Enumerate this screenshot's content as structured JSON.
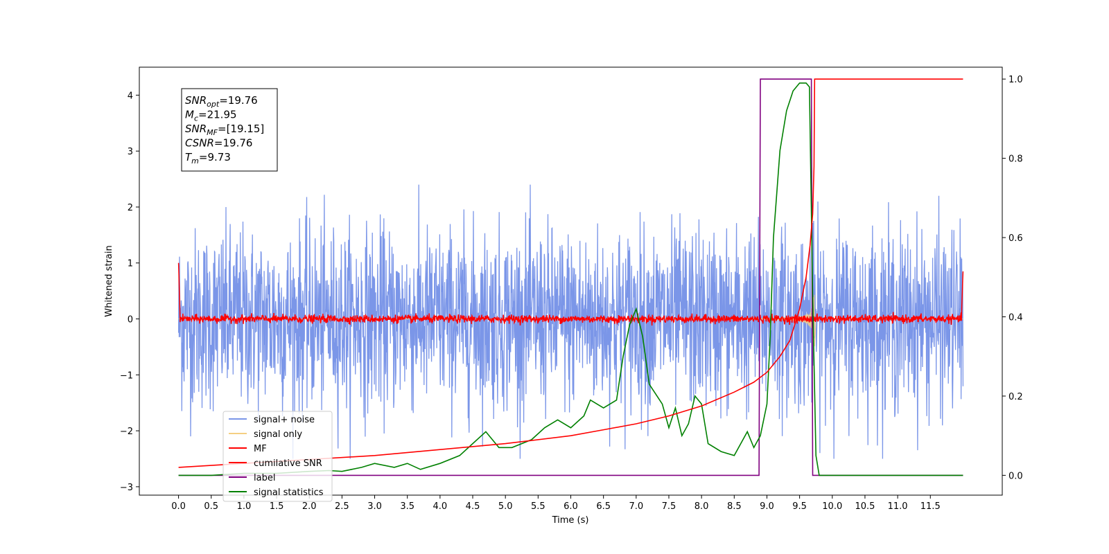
{
  "chart_data": {
    "type": "line",
    "xlabel": "Time (s)",
    "ylabel": "Whitened strain",
    "xlim": [
      -0.6,
      12.6
    ],
    "ylim_left": [
      -3.15,
      4.5
    ],
    "ylim_right": [
      -0.05,
      1.03
    ],
    "xticks": [
      "0.0",
      "0.5",
      "1.0",
      "1.5",
      "2.0",
      "2.5",
      "3.0",
      "3.5",
      "4.0",
      "4.5",
      "5.0",
      "5.5",
      "6.0",
      "6.5",
      "7.0",
      "7.5",
      "8.0",
      "8.5",
      "9.0",
      "9.5",
      "10.0",
      "10.5",
      "11.0",
      "11.5"
    ],
    "yticks_left": [
      "−3",
      "−2",
      "−1",
      "0",
      "1",
      "2",
      "3",
      "4"
    ],
    "yticks_right": [
      "0.0",
      "0.2",
      "0.4",
      "0.6",
      "0.8",
      "1.0"
    ],
    "legend_placement": "lower-left",
    "grid": false,
    "annotation": {
      "lines": [
        {
          "sym": "SNR",
          "sub": "opt",
          "value": "=19.76"
        },
        {
          "sym": "M",
          "sub": "c",
          "value": "=21.95"
        },
        {
          "sym": "SNR",
          "sub": "MF",
          "value": "=[19.15]"
        },
        {
          "sym": "CSNR",
          "sub": "",
          "value": "=19.76"
        },
        {
          "sym": "T",
          "sub": "m",
          "value": "=9.73"
        }
      ]
    },
    "series": [
      {
        "name": "signal+ noise",
        "color": "#7b96e8",
        "axis": "left",
        "x_range": [
          0,
          12
        ],
        "approx_range": [
          -2.5,
          2.4
        ]
      },
      {
        "name": "signal only",
        "color": "#f5cf82",
        "axis": "left",
        "chirp_end": 9.73
      },
      {
        "name": "MF",
        "color": "#ff0000",
        "axis": "left",
        "x_range": [
          0,
          12
        ]
      },
      {
        "name": "cumilative SNR",
        "color": "#ff0000",
        "axis": "right",
        "x": [
          0.0,
          1.0,
          2.0,
          3.0,
          4.0,
          5.0,
          6.0,
          6.5,
          7.0,
          7.5,
          8.0,
          8.5,
          8.8,
          9.0,
          9.2,
          9.35,
          9.5,
          9.6,
          9.66,
          9.7,
          9.72,
          9.73,
          12.0
        ],
        "y": [
          0.02,
          0.03,
          0.04,
          0.05,
          0.065,
          0.08,
          0.1,
          0.115,
          0.13,
          0.15,
          0.175,
          0.21,
          0.235,
          0.26,
          0.3,
          0.34,
          0.42,
          0.5,
          0.58,
          0.66,
          0.78,
          1.0,
          1.0
        ]
      },
      {
        "name": "label",
        "color": "#800080",
        "axis": "right",
        "x": [
          0.0,
          8.88,
          8.9,
          9.68,
          9.7,
          12.0
        ],
        "y": [
          0.0,
          0.0,
          1.0,
          1.0,
          0.0,
          0.0
        ]
      },
      {
        "name": "signal statistics",
        "color": "#008000",
        "axis": "right",
        "x": [
          0.0,
          0.5,
          1.0,
          1.5,
          2.0,
          2.3,
          2.5,
          2.8,
          3.0,
          3.3,
          3.5,
          3.7,
          4.0,
          4.3,
          4.5,
          4.7,
          4.9,
          5.1,
          5.4,
          5.6,
          5.8,
          6.0,
          6.2,
          6.3,
          6.5,
          6.7,
          6.8,
          6.9,
          7.0,
          7.1,
          7.2,
          7.4,
          7.5,
          7.6,
          7.7,
          7.8,
          7.9,
          8.0,
          8.1,
          8.3,
          8.5,
          8.7,
          8.8,
          8.9,
          9.0,
          9.05,
          9.1,
          9.2,
          9.3,
          9.4,
          9.5,
          9.6,
          9.65,
          9.7,
          9.75,
          9.8,
          12.0
        ],
        "y": [
          0.0,
          0.0,
          0.005,
          0.005,
          0.01,
          0.012,
          0.01,
          0.02,
          0.03,
          0.02,
          0.03,
          0.015,
          0.03,
          0.05,
          0.08,
          0.11,
          0.07,
          0.07,
          0.09,
          0.12,
          0.14,
          0.12,
          0.15,
          0.19,
          0.17,
          0.19,
          0.3,
          0.38,
          0.42,
          0.35,
          0.23,
          0.18,
          0.12,
          0.17,
          0.1,
          0.13,
          0.2,
          0.18,
          0.08,
          0.06,
          0.05,
          0.11,
          0.07,
          0.1,
          0.18,
          0.35,
          0.6,
          0.82,
          0.92,
          0.97,
          0.99,
          0.99,
          0.98,
          0.45,
          0.05,
          0.0,
          0.0
        ]
      }
    ]
  }
}
